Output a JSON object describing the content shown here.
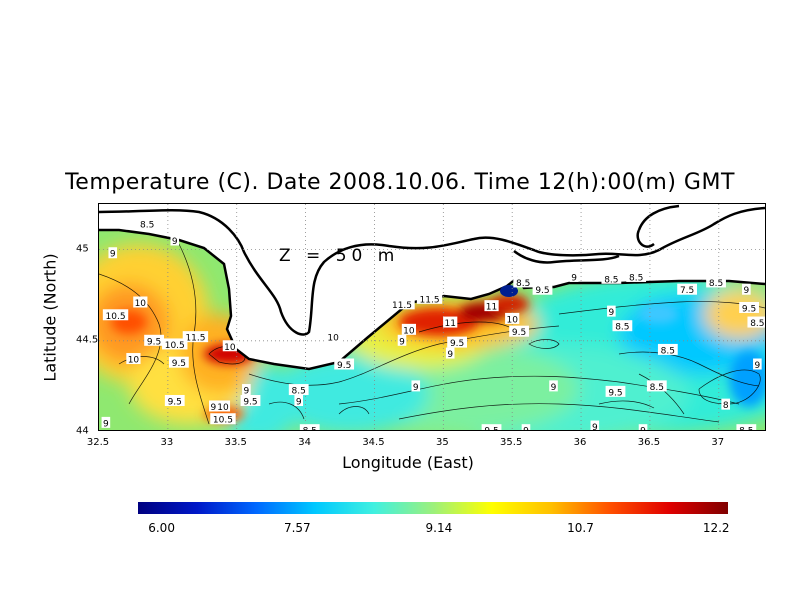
{
  "title": "Temperature (C). Date 2008.10.06. Time 12(h):00(m) GMT",
  "depth_label": "Z = 50 m",
  "axes": {
    "xlabel": "Longitude (East)",
    "ylabel": "Latitude (North)",
    "x_ticks": [
      "32.5",
      "33",
      "33.5",
      "34",
      "34.5",
      "35",
      "35.5",
      "36",
      "36.5",
      "37"
    ],
    "y_ticks": [
      "44",
      "44.5",
      "45"
    ],
    "x_range": [
      32.5,
      37.35
    ],
    "y_range": [
      44,
      45.25
    ]
  },
  "colorbar": {
    "labels": [
      "6.00",
      "7.57",
      "9.14",
      "10.7",
      "12.2"
    ],
    "min": 6.0,
    "max": 12.2,
    "colors": [
      "#000080",
      "#0018c8",
      "#0068ff",
      "#00c8ff",
      "#40f0e0",
      "#9cf07c",
      "#ffff00",
      "#ffc000",
      "#ff5000",
      "#e00000",
      "#800000"
    ]
  },
  "contour_labels": [
    {
      "text": "8.5",
      "lon": 32.85,
      "lat": 45.14
    },
    {
      "text": "9",
      "lon": 33.05,
      "lat": 45.05
    },
    {
      "text": "9",
      "lon": 32.6,
      "lat": 44.98
    },
    {
      "text": "10",
      "lon": 32.8,
      "lat": 44.71
    },
    {
      "text": "10.5",
      "lon": 32.62,
      "lat": 44.64
    },
    {
      "text": "9.5",
      "lon": 32.9,
      "lat": 44.5
    },
    {
      "text": "11.5",
      "lon": 33.2,
      "lat": 44.52
    },
    {
      "text": "10.5",
      "lon": 33.05,
      "lat": 44.48
    },
    {
      "text": "10",
      "lon": 33.45,
      "lat": 44.47
    },
    {
      "text": "10",
      "lon": 32.75,
      "lat": 44.4
    },
    {
      "text": "9.5",
      "lon": 33.08,
      "lat": 44.38
    },
    {
      "text": "9.5",
      "lon": 33.05,
      "lat": 44.17
    },
    {
      "text": "9.5",
      "lon": 33.6,
      "lat": 44.17
    },
    {
      "text": "10",
      "lon": 33.4,
      "lat": 44.14
    },
    {
      "text": "9",
      "lon": 33.33,
      "lat": 44.14
    },
    {
      "text": "10.5",
      "lon": 33.4,
      "lat": 44.07
    },
    {
      "text": "9",
      "lon": 33.57,
      "lat": 44.23
    },
    {
      "text": "8.5",
      "lon": 33.95,
      "lat": 44.23
    },
    {
      "text": "9",
      "lon": 33.95,
      "lat": 44.17
    },
    {
      "text": "8.5",
      "lon": 34.03,
      "lat": 44.01
    },
    {
      "text": "9.5",
      "lon": 34.28,
      "lat": 44.37
    },
    {
      "text": "10",
      "lon": 34.2,
      "lat": 44.52
    },
    {
      "text": "11.5",
      "lon": 34.7,
      "lat": 44.7
    },
    {
      "text": "11.5",
      "lon": 34.9,
      "lat": 44.73
    },
    {
      "text": "11",
      "lon": 35.05,
      "lat": 44.6
    },
    {
      "text": "11",
      "lon": 35.35,
      "lat": 44.69
    },
    {
      "text": "10",
      "lon": 35.5,
      "lat": 44.62
    },
    {
      "text": "10",
      "lon": 34.75,
      "lat": 44.56
    },
    {
      "text": "9",
      "lon": 34.7,
      "lat": 44.5
    },
    {
      "text": "9.5",
      "lon": 35.1,
      "lat": 44.49
    },
    {
      "text": "9",
      "lon": 35.05,
      "lat": 44.43
    },
    {
      "text": "9.5",
      "lon": 35.55,
      "lat": 44.55
    },
    {
      "text": "9",
      "lon": 34.8,
      "lat": 44.25
    },
    {
      "text": "9",
      "lon": 35.8,
      "lat": 44.25
    },
    {
      "text": "8.5",
      "lon": 35.58,
      "lat": 44.82
    },
    {
      "text": "9",
      "lon": 35.95,
      "lat": 44.85
    },
    {
      "text": "9.5",
      "lon": 35.72,
      "lat": 44.78
    },
    {
      "text": "8.5",
      "lon": 36.22,
      "lat": 44.84
    },
    {
      "text": "8.5",
      "lon": 36.4,
      "lat": 44.85
    },
    {
      "text": "7.5",
      "lon": 36.77,
      "lat": 44.78
    },
    {
      "text": "8.5",
      "lon": 36.98,
      "lat": 44.82
    },
    {
      "text": "9",
      "lon": 37.2,
      "lat": 44.78
    },
    {
      "text": "9.5",
      "lon": 37.22,
      "lat": 44.68
    },
    {
      "text": "8.5",
      "lon": 37.28,
      "lat": 44.6
    },
    {
      "text": "9",
      "lon": 36.22,
      "lat": 44.66
    },
    {
      "text": "8.5",
      "lon": 36.3,
      "lat": 44.58
    },
    {
      "text": "8.5",
      "lon": 36.63,
      "lat": 44.45
    },
    {
      "text": "9",
      "lon": 37.28,
      "lat": 44.37
    },
    {
      "text": "8.5",
      "lon": 36.55,
      "lat": 44.25
    },
    {
      "text": "8",
      "lon": 37.05,
      "lat": 44.15
    },
    {
      "text": "9",
      "lon": 36.45,
      "lat": 44.01
    },
    {
      "text": "8.5",
      "lon": 37.2,
      "lat": 44.01
    },
    {
      "text": "9",
      "lon": 36.1,
      "lat": 44.03
    },
    {
      "text": "9.5",
      "lon": 36.25,
      "lat": 44.22
    },
    {
      "text": "9",
      "lon": 35.6,
      "lat": 44.01
    },
    {
      "text": "9",
      "lon": 32.55,
      "lat": 44.05
    },
    {
      "text": "9.5",
      "lon": 35.35,
      "lat": 44.01
    }
  ]
}
